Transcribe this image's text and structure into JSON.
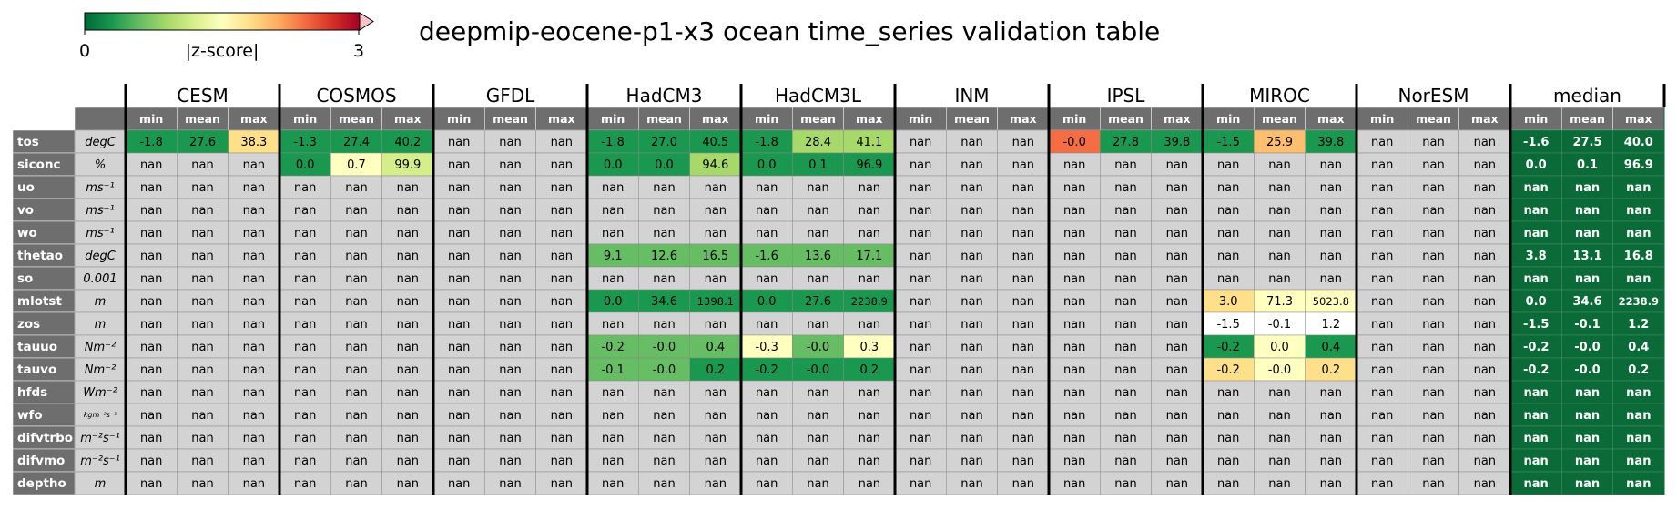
{
  "title": "deepmip-eocene-p1-x3 ocean time_series validation table",
  "colorbar": {
    "label": "|z-score|",
    "min_label": "0",
    "max_label": "3",
    "colormap": "RdYlGn_r",
    "colors": [
      "#006837",
      "#1a9850",
      "#66bd63",
      "#a6d96a",
      "#d9ef8b",
      "#ffffbf",
      "#fee08b",
      "#fdae61",
      "#f46d43",
      "#d73027",
      "#a50026"
    ]
  },
  "chart_data": {
    "type": "table",
    "title": "deepmip-eocene-p1-x3 ocean time_series validation table",
    "models": [
      "CESM",
      "COSMOS",
      "GFDL",
      "HadCM3",
      "HadCM3L",
      "INM",
      "IPSL",
      "MIROC",
      "NorESM",
      "median"
    ],
    "stats": [
      "min",
      "mean",
      "max"
    ],
    "variables": [
      {
        "name": "tos",
        "unit": "degC"
      },
      {
        "name": "siconc",
        "unit": "%"
      },
      {
        "name": "uo",
        "unit": "ms⁻¹"
      },
      {
        "name": "vo",
        "unit": "ms⁻¹"
      },
      {
        "name": "wo",
        "unit": "ms⁻¹"
      },
      {
        "name": "thetao",
        "unit": "degC"
      },
      {
        "name": "so",
        "unit": "0.001"
      },
      {
        "name": "mlotst",
        "unit": "m"
      },
      {
        "name": "zos",
        "unit": "m"
      },
      {
        "name": "tauuo",
        "unit": "Nm⁻²"
      },
      {
        "name": "tauvo",
        "unit": "Nm⁻²"
      },
      {
        "name": "hfds",
        "unit": "Wm⁻²"
      },
      {
        "name": "wfo",
        "unit": "kgm⁻²s⁻¹"
      },
      {
        "name": "difvtrbo",
        "unit": "m⁻²s⁻¹"
      },
      {
        "name": "difvmo",
        "unit": "m⁻²s⁻¹"
      },
      {
        "name": "deptho",
        "unit": "m"
      }
    ],
    "values": [
      [
        [
          "-1.8",
          "27.6",
          "38.3"
        ],
        [
          "-1.3",
          "27.4",
          "40.2"
        ],
        [
          "nan",
          "nan",
          "nan"
        ],
        [
          "-1.8",
          "27.0",
          "40.5"
        ],
        [
          "-1.8",
          "28.4",
          "41.1"
        ],
        [
          "nan",
          "nan",
          "nan"
        ],
        [
          "-0.0",
          "27.8",
          "39.8"
        ],
        [
          "-1.5",
          "25.9",
          "39.8"
        ],
        [
          "nan",
          "nan",
          "nan"
        ],
        [
          "-1.6",
          "27.5",
          "40.0"
        ]
      ],
      [
        [
          "nan",
          "nan",
          "nan"
        ],
        [
          "0.0",
          "0.7",
          "99.9"
        ],
        [
          "nan",
          "nan",
          "nan"
        ],
        [
          "0.0",
          "0.0",
          "94.6"
        ],
        [
          "0.0",
          "0.1",
          "96.9"
        ],
        [
          "nan",
          "nan",
          "nan"
        ],
        [
          "nan",
          "nan",
          "nan"
        ],
        [
          "nan",
          "nan",
          "nan"
        ],
        [
          "nan",
          "nan",
          "nan"
        ],
        [
          "0.0",
          "0.1",
          "96.9"
        ]
      ],
      [
        [
          "nan",
          "nan",
          "nan"
        ],
        [
          "nan",
          "nan",
          "nan"
        ],
        [
          "nan",
          "nan",
          "nan"
        ],
        [
          "nan",
          "nan",
          "nan"
        ],
        [
          "nan",
          "nan",
          "nan"
        ],
        [
          "nan",
          "nan",
          "nan"
        ],
        [
          "nan",
          "nan",
          "nan"
        ],
        [
          "nan",
          "nan",
          "nan"
        ],
        [
          "nan",
          "nan",
          "nan"
        ],
        [
          "nan",
          "nan",
          "nan"
        ]
      ],
      [
        [
          "nan",
          "nan",
          "nan"
        ],
        [
          "nan",
          "nan",
          "nan"
        ],
        [
          "nan",
          "nan",
          "nan"
        ],
        [
          "nan",
          "nan",
          "nan"
        ],
        [
          "nan",
          "nan",
          "nan"
        ],
        [
          "nan",
          "nan",
          "nan"
        ],
        [
          "nan",
          "nan",
          "nan"
        ],
        [
          "nan",
          "nan",
          "nan"
        ],
        [
          "nan",
          "nan",
          "nan"
        ],
        [
          "nan",
          "nan",
          "nan"
        ]
      ],
      [
        [
          "nan",
          "nan",
          "nan"
        ],
        [
          "nan",
          "nan",
          "nan"
        ],
        [
          "nan",
          "nan",
          "nan"
        ],
        [
          "nan",
          "nan",
          "nan"
        ],
        [
          "nan",
          "nan",
          "nan"
        ],
        [
          "nan",
          "nan",
          "nan"
        ],
        [
          "nan",
          "nan",
          "nan"
        ],
        [
          "nan",
          "nan",
          "nan"
        ],
        [
          "nan",
          "nan",
          "nan"
        ],
        [
          "nan",
          "nan",
          "nan"
        ]
      ],
      [
        [
          "nan",
          "nan",
          "nan"
        ],
        [
          "nan",
          "nan",
          "nan"
        ],
        [
          "nan",
          "nan",
          "nan"
        ],
        [
          "9.1",
          "12.6",
          "16.5"
        ],
        [
          "-1.6",
          "13.6",
          "17.1"
        ],
        [
          "nan",
          "nan",
          "nan"
        ],
        [
          "nan",
          "nan",
          "nan"
        ],
        [
          "nan",
          "nan",
          "nan"
        ],
        [
          "nan",
          "nan",
          "nan"
        ],
        [
          "3.8",
          "13.1",
          "16.8"
        ]
      ],
      [
        [
          "nan",
          "nan",
          "nan"
        ],
        [
          "nan",
          "nan",
          "nan"
        ],
        [
          "nan",
          "nan",
          "nan"
        ],
        [
          "nan",
          "nan",
          "nan"
        ],
        [
          "nan",
          "nan",
          "nan"
        ],
        [
          "nan",
          "nan",
          "nan"
        ],
        [
          "nan",
          "nan",
          "nan"
        ],
        [
          "nan",
          "nan",
          "nan"
        ],
        [
          "nan",
          "nan",
          "nan"
        ],
        [
          "nan",
          "nan",
          "nan"
        ]
      ],
      [
        [
          "nan",
          "nan",
          "nan"
        ],
        [
          "nan",
          "nan",
          "nan"
        ],
        [
          "nan",
          "nan",
          "nan"
        ],
        [
          "0.0",
          "34.6",
          "1398.1"
        ],
        [
          "0.0",
          "27.6",
          "2238.9"
        ],
        [
          "nan",
          "nan",
          "nan"
        ],
        [
          "nan",
          "nan",
          "nan"
        ],
        [
          "3.0",
          "71.3",
          "5023.8"
        ],
        [
          "nan",
          "nan",
          "nan"
        ],
        [
          "0.0",
          "34.6",
          "2238.9"
        ]
      ],
      [
        [
          "nan",
          "nan",
          "nan"
        ],
        [
          "nan",
          "nan",
          "nan"
        ],
        [
          "nan",
          "nan",
          "nan"
        ],
        [
          "nan",
          "nan",
          "nan"
        ],
        [
          "nan",
          "nan",
          "nan"
        ],
        [
          "nan",
          "nan",
          "nan"
        ],
        [
          "nan",
          "nan",
          "nan"
        ],
        [
          "-1.5",
          "-0.1",
          "1.2"
        ],
        [
          "nan",
          "nan",
          "nan"
        ],
        [
          "-1.5",
          "-0.1",
          "1.2"
        ]
      ],
      [
        [
          "nan",
          "nan",
          "nan"
        ],
        [
          "nan",
          "nan",
          "nan"
        ],
        [
          "nan",
          "nan",
          "nan"
        ],
        [
          "-0.2",
          "-0.0",
          "0.4"
        ],
        [
          "-0.3",
          "-0.0",
          "0.3"
        ],
        [
          "nan",
          "nan",
          "nan"
        ],
        [
          "nan",
          "nan",
          "nan"
        ],
        [
          "-0.2",
          "0.0",
          "0.4"
        ],
        [
          "nan",
          "nan",
          "nan"
        ],
        [
          "-0.2",
          "-0.0",
          "0.4"
        ]
      ],
      [
        [
          "nan",
          "nan",
          "nan"
        ],
        [
          "nan",
          "nan",
          "nan"
        ],
        [
          "nan",
          "nan",
          "nan"
        ],
        [
          "-0.1",
          "-0.0",
          "0.2"
        ],
        [
          "-0.2",
          "-0.0",
          "0.2"
        ],
        [
          "nan",
          "nan",
          "nan"
        ],
        [
          "nan",
          "nan",
          "nan"
        ],
        [
          "-0.2",
          "-0.0",
          "0.2"
        ],
        [
          "nan",
          "nan",
          "nan"
        ],
        [
          "-0.2",
          "-0.0",
          "0.2"
        ]
      ],
      [
        [
          "nan",
          "nan",
          "nan"
        ],
        [
          "nan",
          "nan",
          "nan"
        ],
        [
          "nan",
          "nan",
          "nan"
        ],
        [
          "nan",
          "nan",
          "nan"
        ],
        [
          "nan",
          "nan",
          "nan"
        ],
        [
          "nan",
          "nan",
          "nan"
        ],
        [
          "nan",
          "nan",
          "nan"
        ],
        [
          "nan",
          "nan",
          "nan"
        ],
        [
          "nan",
          "nan",
          "nan"
        ],
        [
          "nan",
          "nan",
          "nan"
        ]
      ],
      [
        [
          "nan",
          "nan",
          "nan"
        ],
        [
          "nan",
          "nan",
          "nan"
        ],
        [
          "nan",
          "nan",
          "nan"
        ],
        [
          "nan",
          "nan",
          "nan"
        ],
        [
          "nan",
          "nan",
          "nan"
        ],
        [
          "nan",
          "nan",
          "nan"
        ],
        [
          "nan",
          "nan",
          "nan"
        ],
        [
          "nan",
          "nan",
          "nan"
        ],
        [
          "nan",
          "nan",
          "nan"
        ],
        [
          "nan",
          "nan",
          "nan"
        ]
      ],
      [
        [
          "nan",
          "nan",
          "nan"
        ],
        [
          "nan",
          "nan",
          "nan"
        ],
        [
          "nan",
          "nan",
          "nan"
        ],
        [
          "nan",
          "nan",
          "nan"
        ],
        [
          "nan",
          "nan",
          "nan"
        ],
        [
          "nan",
          "nan",
          "nan"
        ],
        [
          "nan",
          "nan",
          "nan"
        ],
        [
          "nan",
          "nan",
          "nan"
        ],
        [
          "nan",
          "nan",
          "nan"
        ],
        [
          "nan",
          "nan",
          "nan"
        ]
      ],
      [
        [
          "nan",
          "nan",
          "nan"
        ],
        [
          "nan",
          "nan",
          "nan"
        ],
        [
          "nan",
          "nan",
          "nan"
        ],
        [
          "nan",
          "nan",
          "nan"
        ],
        [
          "nan",
          "nan",
          "nan"
        ],
        [
          "nan",
          "nan",
          "nan"
        ],
        [
          "nan",
          "nan",
          "nan"
        ],
        [
          "nan",
          "nan",
          "nan"
        ],
        [
          "nan",
          "nan",
          "nan"
        ],
        [
          "nan",
          "nan",
          "nan"
        ]
      ],
      [
        [
          "nan",
          "nan",
          "nan"
        ],
        [
          "nan",
          "nan",
          "nan"
        ],
        [
          "nan",
          "nan",
          "nan"
        ],
        [
          "nan",
          "nan",
          "nan"
        ],
        [
          "nan",
          "nan",
          "nan"
        ],
        [
          "nan",
          "nan",
          "nan"
        ],
        [
          "nan",
          "nan",
          "nan"
        ],
        [
          "nan",
          "nan",
          "nan"
        ],
        [
          "nan",
          "nan",
          "nan"
        ],
        [
          "nan",
          "nan",
          "nan"
        ]
      ]
    ],
    "cell_colors": {
      "nan": "#d3d3d3",
      "median": "#0b6b38",
      "shaded": [
        {
          "var": "tos",
          "model": "CESM",
          "colors": [
            "#1a9850",
            "#1a9850",
            "#fee08b"
          ]
        },
        {
          "var": "tos",
          "model": "COSMOS",
          "colors": [
            "#1a9850",
            "#1a9850",
            "#1a9850"
          ]
        },
        {
          "var": "tos",
          "model": "HadCM3",
          "colors": [
            "#1a9850",
            "#1a9850",
            "#1a9850"
          ]
        },
        {
          "var": "tos",
          "model": "HadCM3L",
          "colors": [
            "#1a9850",
            "#a6d96a",
            "#a6d96a"
          ]
        },
        {
          "var": "tos",
          "model": "IPSL",
          "colors": [
            "#f46d43",
            "#1a9850",
            "#1a9850"
          ]
        },
        {
          "var": "tos",
          "model": "MIROC",
          "colors": [
            "#1a9850",
            "#fdbe6f",
            "#1a9850"
          ]
        },
        {
          "var": "siconc",
          "model": "COSMOS",
          "colors": [
            "#1a9850",
            "#ffffbf",
            "#d4ee8a"
          ]
        },
        {
          "var": "siconc",
          "model": "HadCM3",
          "colors": [
            "#1a9850",
            "#1a9850",
            "#a6d96a"
          ]
        },
        {
          "var": "siconc",
          "model": "HadCM3L",
          "colors": [
            "#1a9850",
            "#1a9850",
            "#1a9850"
          ]
        },
        {
          "var": "thetao",
          "model": "HadCM3",
          "colors": [
            "#66bd63",
            "#66bd63",
            "#66bd63"
          ]
        },
        {
          "var": "thetao",
          "model": "HadCM3L",
          "colors": [
            "#66bd63",
            "#66bd63",
            "#66bd63"
          ]
        },
        {
          "var": "mlotst",
          "model": "HadCM3",
          "colors": [
            "#1a9850",
            "#1a9850",
            "#1a9850"
          ]
        },
        {
          "var": "mlotst",
          "model": "HadCM3L",
          "colors": [
            "#1a9850",
            "#1a9850",
            "#1a9850"
          ]
        },
        {
          "var": "mlotst",
          "model": "MIROC",
          "colors": [
            "#fee08b",
            "#ffffbf",
            "#ffffbf"
          ]
        },
        {
          "var": "zos",
          "model": "MIROC",
          "colors": [
            "#ffffff",
            "#ffffff",
            "#ffffff"
          ]
        },
        {
          "var": "tauuo",
          "model": "HadCM3",
          "colors": [
            "#66bd63",
            "#66bd63",
            "#66bd63"
          ]
        },
        {
          "var": "tauuo",
          "model": "HadCM3L",
          "colors": [
            "#ffffbf",
            "#66bd63",
            "#ffffbf"
          ]
        },
        {
          "var": "tauuo",
          "model": "MIROC",
          "colors": [
            "#1a9850",
            "#ffffbf",
            "#1a9850"
          ]
        },
        {
          "var": "tauvo",
          "model": "HadCM3",
          "colors": [
            "#66bd63",
            "#66bd63",
            "#1a9850"
          ]
        },
        {
          "var": "tauvo",
          "model": "HadCM3L",
          "colors": [
            "#1a9850",
            "#1a9850",
            "#1a9850"
          ]
        },
        {
          "var": "tauvo",
          "model": "MIROC",
          "colors": [
            "#fee08b",
            "#ffffbf",
            "#fee08b"
          ]
        }
      ]
    }
  }
}
